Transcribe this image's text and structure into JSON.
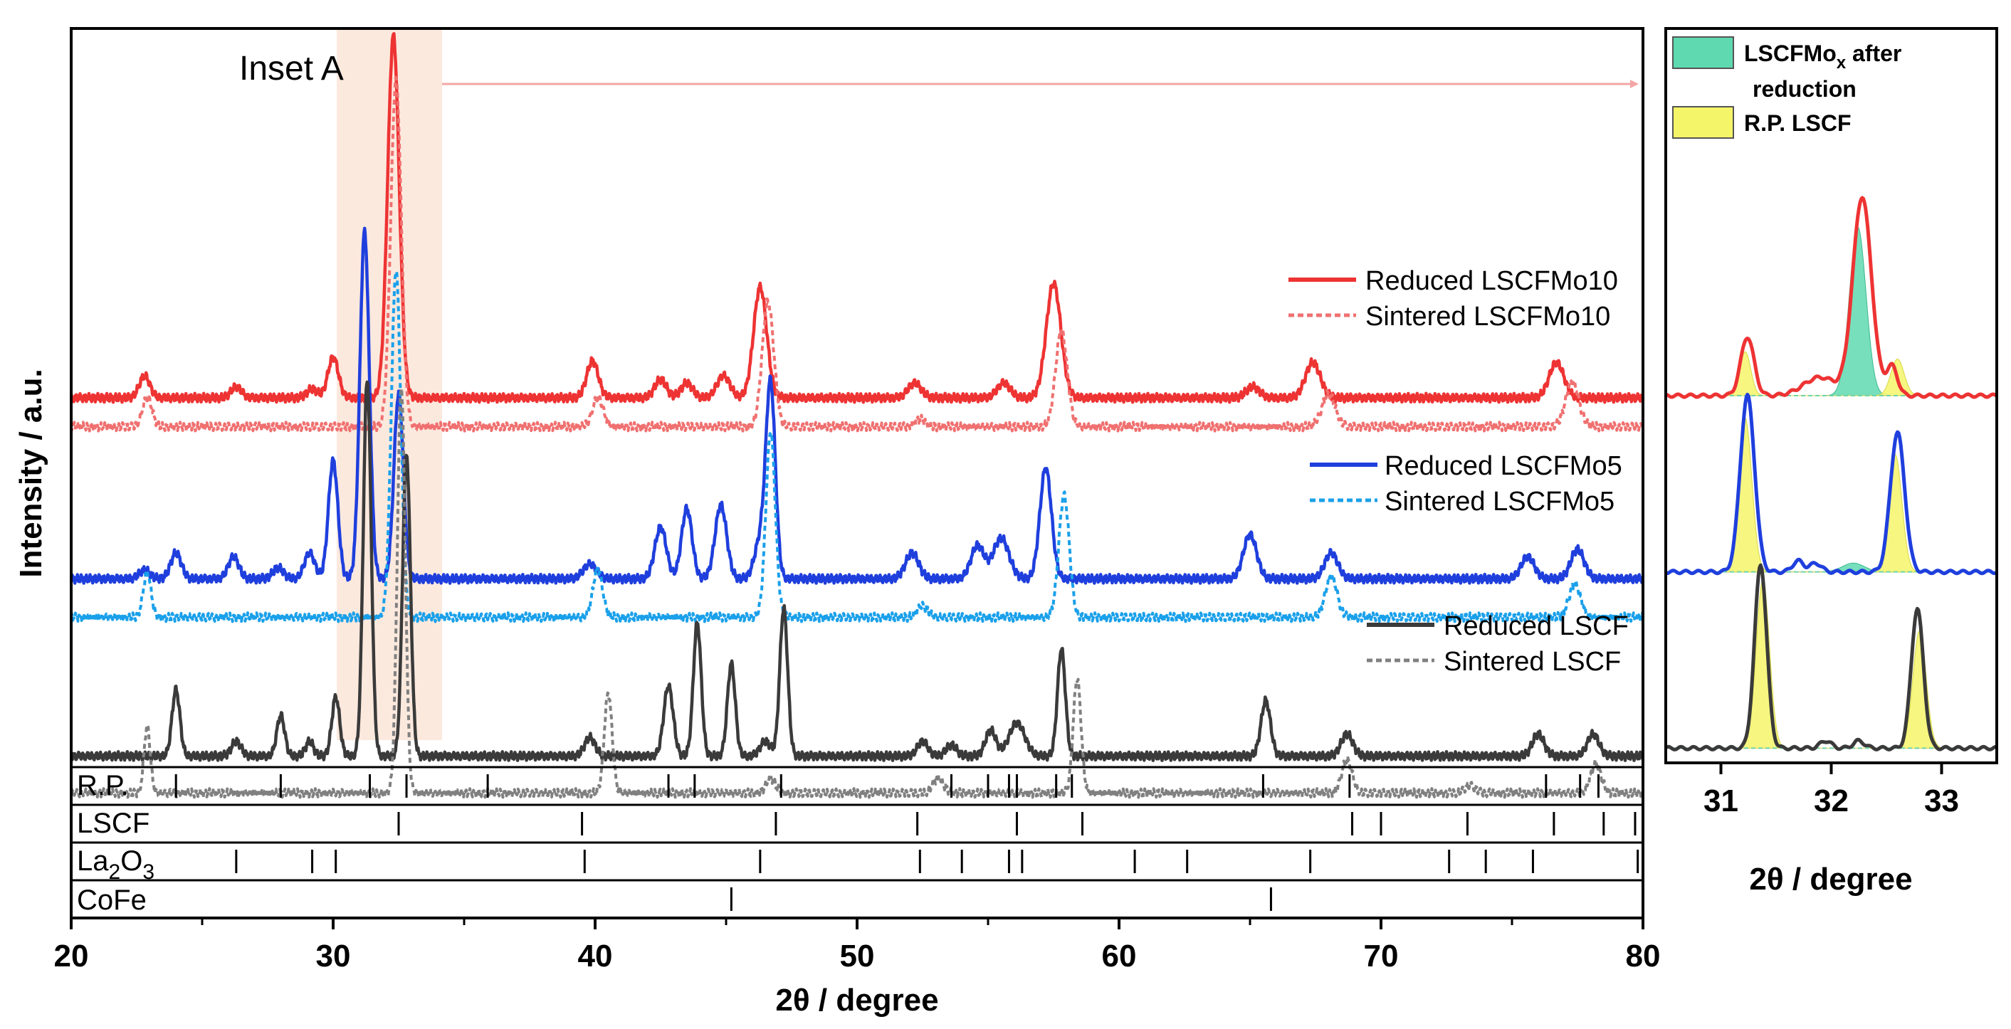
{
  "chart_data": [
    {
      "type": "line",
      "panel": "main",
      "xlabel": "2θ / degree",
      "ylabel": "Intensity / a.u.",
      "xlim": [
        20,
        80
      ],
      "xticks": [
        20,
        30,
        40,
        50,
        60,
        70,
        80
      ],
      "yticks": "none",
      "annotation": {
        "text": "Inset A",
        "range": [
          30,
          34
        ]
      },
      "colors": {
        "reduced_lscfmo10": "#ee3333",
        "sintered_lscfmo10": "#f07070",
        "reduced_lscfmo5": "#1f3fdd",
        "sintered_lscfmo5": "#1aa0ea",
        "reduced_lscf": "#3a3a3a",
        "sintered_lscf": "#808080",
        "inset_band": "#fbe3d6",
        "arrow": "#f4a5a5"
      },
      "series": [
        {
          "name": "Reduced LSCFMo10",
          "style": "solid",
          "baseline": 0.5,
          "peaks": [
            [
              22.8,
              0.03,
              0.2
            ],
            [
              26.3,
              0.015,
              0.2
            ],
            [
              29.2,
              0.012,
              0.2
            ],
            [
              30.0,
              0.055,
              0.2
            ],
            [
              32.3,
              0.49,
              0.22
            ],
            [
              39.9,
              0.05,
              0.22
            ],
            [
              42.5,
              0.025,
              0.22
            ],
            [
              43.5,
              0.02,
              0.22
            ],
            [
              44.9,
              0.03,
              0.25
            ],
            [
              46.3,
              0.15,
              0.25
            ],
            [
              52.2,
              0.02,
              0.25
            ],
            [
              55.6,
              0.02,
              0.25
            ],
            [
              57.5,
              0.155,
              0.28
            ],
            [
              65.1,
              0.015,
              0.25
            ],
            [
              67.4,
              0.048,
              0.28
            ],
            [
              76.7,
              0.048,
              0.28
            ]
          ]
        },
        {
          "name": "Sintered LSCFMo10",
          "style": "dotted",
          "baseline": 0.539,
          "peaks": [
            [
              22.9,
              0.04,
              0.18
            ],
            [
              32.4,
              0.47,
              0.2
            ],
            [
              40.1,
              0.04,
              0.2
            ],
            [
              46.6,
              0.17,
              0.22
            ],
            [
              52.4,
              0.01,
              0.2
            ],
            [
              57.8,
              0.13,
              0.22
            ],
            [
              68.0,
              0.045,
              0.25
            ],
            [
              77.3,
              0.06,
              0.25
            ]
          ]
        },
        {
          "name": "Reduced LSCFMo5",
          "style": "solid",
          "baseline": 0.745,
          "peaks": [
            [
              22.8,
              0.012,
              0.2
            ],
            [
              24.0,
              0.035,
              0.2
            ],
            [
              26.2,
              0.03,
              0.2
            ],
            [
              27.9,
              0.015,
              0.2
            ],
            [
              29.1,
              0.035,
              0.2
            ],
            [
              30.0,
              0.16,
              0.18
            ],
            [
              31.2,
              0.47,
              0.18
            ],
            [
              32.5,
              0.25,
              0.18
            ],
            [
              39.8,
              0.02,
              0.25
            ],
            [
              42.5,
              0.07,
              0.22
            ],
            [
              43.5,
              0.095,
              0.2
            ],
            [
              44.8,
              0.1,
              0.22
            ],
            [
              46.3,
              0.05,
              0.22
            ],
            [
              46.7,
              0.26,
              0.18
            ],
            [
              52.1,
              0.035,
              0.25
            ],
            [
              54.6,
              0.045,
              0.25
            ],
            [
              55.5,
              0.055,
              0.3
            ],
            [
              57.2,
              0.15,
              0.22
            ],
            [
              65.0,
              0.06,
              0.25
            ],
            [
              68.1,
              0.035,
              0.25
            ],
            [
              75.6,
              0.03,
              0.25
            ],
            [
              77.5,
              0.04,
              0.25
            ]
          ]
        },
        {
          "name": "Sintered LSCFMo5",
          "style": "dotted",
          "baseline": 0.797,
          "peaks": [
            [
              22.9,
              0.06,
              0.15
            ],
            [
              32.4,
              0.47,
              0.18
            ],
            [
              40.1,
              0.065,
              0.18
            ],
            [
              46.7,
              0.25,
              0.18
            ],
            [
              52.5,
              0.015,
              0.2
            ],
            [
              57.9,
              0.165,
              0.2
            ],
            [
              68.1,
              0.055,
              0.22
            ],
            [
              77.4,
              0.045,
              0.22
            ]
          ]
        },
        {
          "name": "Reduced LSCF",
          "style": "solid",
          "baseline": 0.985,
          "peaks": [
            [
              24.0,
              0.09,
              0.15
            ],
            [
              26.3,
              0.02,
              0.18
            ],
            [
              28.0,
              0.055,
              0.15
            ],
            [
              29.1,
              0.02,
              0.15
            ],
            [
              30.1,
              0.08,
              0.15
            ],
            [
              31.3,
              0.51,
              0.15
            ],
            [
              32.8,
              0.41,
              0.15
            ],
            [
              39.8,
              0.025,
              0.2
            ],
            [
              42.8,
              0.095,
              0.18
            ],
            [
              43.9,
              0.18,
              0.15
            ],
            [
              45.2,
              0.125,
              0.15
            ],
            [
              46.5,
              0.02,
              0.2
            ],
            [
              47.2,
              0.2,
              0.15
            ],
            [
              52.5,
              0.02,
              0.2
            ],
            [
              53.6,
              0.015,
              0.2
            ],
            [
              55.1,
              0.035,
              0.2
            ],
            [
              56.1,
              0.045,
              0.3
            ],
            [
              57.8,
              0.145,
              0.15
            ],
            [
              65.6,
              0.075,
              0.18
            ],
            [
              68.7,
              0.03,
              0.22
            ],
            [
              76.0,
              0.03,
              0.22
            ],
            [
              78.1,
              0.03,
              0.22
            ]
          ]
        },
        {
          "name": "Sintered LSCF",
          "style": "dotted",
          "baseline": 1.035,
          "peaks": [
            [
              22.9,
              0.09,
              0.12
            ],
            [
              32.6,
              0.55,
              0.15
            ],
            [
              40.5,
              0.135,
              0.15
            ],
            [
              46.7,
              0.02,
              0.18
            ],
            [
              53.1,
              0.02,
              0.2
            ],
            [
              58.4,
              0.155,
              0.15
            ],
            [
              68.7,
              0.045,
              0.2
            ],
            [
              73.4,
              0.01,
              0.2
            ],
            [
              78.2,
              0.04,
              0.2
            ]
          ]
        }
      ],
      "reference_patterns": [
        {
          "name": "R.P.",
          "lines": [
            24.0,
            28.0,
            31.4,
            32.8,
            35.9,
            42.8,
            43.8,
            47.1,
            53.6,
            55.0,
            55.8,
            56.1,
            57.6,
            58.2,
            65.5,
            68.8,
            76.3,
            77.6,
            78.3
          ]
        },
        {
          "name": "LSCF",
          "lines": [
            32.5,
            39.5,
            46.9,
            52.3,
            56.1,
            58.6,
            68.9,
            70.0,
            73.3,
            76.6,
            78.5,
            79.7
          ]
        },
        {
          "name": "La",
          "sub": "2",
          "name2": "O",
          "sub2": "3",
          "lines": [
            26.3,
            29.2,
            30.1,
            39.6,
            46.3,
            52.4,
            54.0,
            55.8,
            56.3,
            60.6,
            62.6,
            67.3,
            72.6,
            74.0,
            75.8,
            79.8
          ]
        },
        {
          "name": "CoFe",
          "lines": [
            45.2,
            65.8
          ]
        }
      ]
    },
    {
      "type": "area",
      "panel": "inset",
      "xlabel": "2θ / degree",
      "xlim": [
        30.5,
        33.5
      ],
      "xticks": [
        31,
        32,
        33
      ],
      "legend": [
        {
          "label": "LSCFMo",
          "sub": "x",
          "label_tail": " after",
          "label2": "reduction",
          "fill": "#5fd9b0"
        },
        {
          "label": "R.P. LSCF",
          "fill": "#f5f56a"
        }
      ],
      "series": [
        {
          "name": "LSCFMo10",
          "color": "#ee3333",
          "baseline": 0.5,
          "peaks": [
            [
              31.24,
              0.08,
              0.06
            ],
            [
              32.28,
              0.27,
              0.085
            ],
            [
              32.55,
              0.04,
              0.05
            ],
            [
              31.9,
              0.025,
              0.15
            ]
          ],
          "fill_mo": [
            [
              32.24,
              0.23,
              0.075
            ]
          ],
          "fill_rp": [
            [
              31.22,
              0.06,
              0.05
            ],
            [
              32.6,
              0.05,
              0.06
            ]
          ]
        },
        {
          "name": "LSCFMo5",
          "color": "#1f3fdd",
          "baseline": 0.74,
          "peaks": [
            [
              31.24,
              0.24,
              0.065
            ],
            [
              32.6,
              0.19,
              0.065
            ],
            [
              31.7,
              0.015,
              0.05
            ],
            [
              31.86,
              0.012,
              0.05
            ]
          ],
          "fill_mo": [
            [
              32.2,
              0.012,
              0.1
            ]
          ],
          "fill_rp": [
            [
              31.22,
              0.21,
              0.06
            ],
            [
              32.58,
              0.16,
              0.06
            ]
          ]
        },
        {
          "name": "LSCF",
          "color": "#3a3a3a",
          "baseline": 0.98,
          "peaks": [
            [
              31.36,
              0.25,
              0.055
            ],
            [
              32.78,
              0.19,
              0.055
            ],
            [
              31.95,
              0.01,
              0.05
            ],
            [
              32.25,
              0.01,
              0.05
            ]
          ],
          "fill_mo": [],
          "fill_rp": [
            [
              31.38,
              0.23,
              0.06
            ],
            [
              32.8,
              0.16,
              0.06
            ]
          ]
        }
      ]
    }
  ]
}
